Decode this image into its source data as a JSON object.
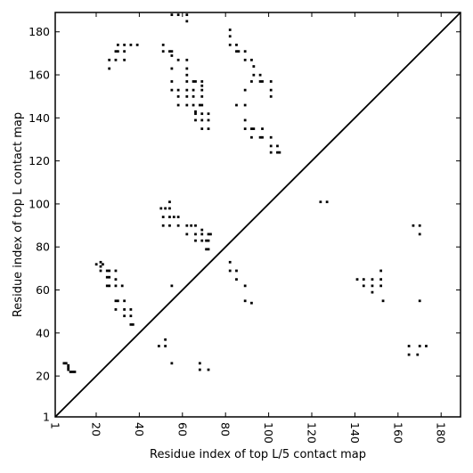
{
  "chart_data": {
    "type": "scatter",
    "xlabel": "Residue index of top L/5 contact map",
    "ylabel": "Residue index of top L contact map",
    "xlim": [
      1,
      189
    ],
    "ylim": [
      1,
      189
    ],
    "xticks": [
      1,
      20,
      40,
      60,
      80,
      100,
      120,
      140,
      160,
      180
    ],
    "yticks": [
      1,
      20,
      40,
      60,
      80,
      100,
      120,
      140,
      160,
      180
    ],
    "grid": false,
    "diagonal": true,
    "colors": {
      "marks": "#000000",
      "axes": "#000000",
      "background": "#ffffff"
    },
    "series": [
      {
        "region": "top-L/5-contacts-below-diagonal",
        "points": [
          [
            5,
            26
          ],
          [
            6,
            26
          ],
          [
            7,
            25
          ],
          [
            7,
            24
          ],
          [
            7,
            23
          ],
          [
            8,
            22
          ],
          [
            9,
            22
          ],
          [
            10,
            22
          ],
          [
            55,
            26
          ],
          [
            68,
            26
          ],
          [
            68,
            23
          ],
          [
            72,
            23
          ],
          [
            49,
            34
          ],
          [
            52,
            37
          ],
          [
            52,
            34
          ],
          [
            165,
            34
          ],
          [
            170,
            34
          ],
          [
            173,
            34
          ],
          [
            165,
            30
          ],
          [
            169,
            30
          ],
          [
            141,
            65
          ],
          [
            144,
            65
          ],
          [
            148,
            65
          ],
          [
            152,
            65
          ],
          [
            152,
            69
          ],
          [
            144,
            62
          ],
          [
            148,
            62
          ],
          [
            152,
            62
          ],
          [
            148,
            59
          ],
          [
            153,
            55
          ],
          [
            170,
            55
          ],
          [
            167,
            90
          ],
          [
            170,
            90
          ],
          [
            170,
            86
          ],
          [
            124,
            101
          ],
          [
            127,
            101
          ]
        ]
      },
      {
        "region": "top-L-contacts-above-diagonal",
        "points": [
          [
            20,
            72
          ],
          [
            22,
            73
          ],
          [
            22,
            71
          ],
          [
            22,
            69
          ],
          [
            23,
            72
          ],
          [
            25,
            69
          ],
          [
            26,
            69
          ],
          [
            29,
            69
          ],
          [
            25,
            66
          ],
          [
            26,
            66
          ],
          [
            29,
            65
          ],
          [
            25,
            62
          ],
          [
            26,
            62
          ],
          [
            29,
            62
          ],
          [
            32,
            62
          ],
          [
            29,
            55
          ],
          [
            30,
            55
          ],
          [
            33,
            55
          ],
          [
            29,
            51
          ],
          [
            33,
            51
          ],
          [
            36,
            51
          ],
          [
            33,
            48
          ],
          [
            36,
            48
          ],
          [
            36,
            44
          ],
          [
            37,
            44
          ],
          [
            50,
            98
          ],
          [
            52,
            98
          ],
          [
            54,
            98
          ],
          [
            54,
            101
          ],
          [
            51,
            94
          ],
          [
            54,
            94
          ],
          [
            56,
            94
          ],
          [
            58,
            94
          ],
          [
            51,
            90
          ],
          [
            54,
            90
          ],
          [
            58,
            90
          ],
          [
            55,
            62
          ],
          [
            62,
            90
          ],
          [
            64,
            90
          ],
          [
            66,
            90
          ],
          [
            69,
            88
          ],
          [
            69,
            86
          ],
          [
            62,
            86
          ],
          [
            66,
            86
          ],
          [
            66,
            83
          ],
          [
            69,
            83
          ],
          [
            71,
            83
          ],
          [
            72,
            83
          ],
          [
            72,
            86
          ],
          [
            73,
            86
          ],
          [
            71,
            79
          ],
          [
            72,
            79
          ],
          [
            82,
            73
          ],
          [
            82,
            69
          ],
          [
            85,
            69
          ],
          [
            85,
            65
          ],
          [
            89,
            62
          ],
          [
            89,
            55
          ],
          [
            92,
            54
          ],
          [
            55,
            188
          ],
          [
            58,
            188
          ],
          [
            62,
            188
          ],
          [
            62,
            185
          ],
          [
            51,
            174
          ],
          [
            51,
            171
          ],
          [
            54,
            171
          ],
          [
            55,
            171
          ],
          [
            55,
            169
          ],
          [
            58,
            167
          ],
          [
            62,
            167
          ],
          [
            62,
            163
          ],
          [
            55,
            163
          ],
          [
            30,
            174
          ],
          [
            29,
            171
          ],
          [
            30,
            171
          ],
          [
            29,
            167
          ],
          [
            26,
            167
          ],
          [
            26,
            163
          ],
          [
            33,
            174
          ],
          [
            36,
            174
          ],
          [
            39,
            174
          ],
          [
            33,
            171
          ],
          [
            33,
            167
          ],
          [
            55,
            157
          ],
          [
            62,
            160
          ],
          [
            62,
            157
          ],
          [
            65,
            157
          ],
          [
            66,
            157
          ],
          [
            69,
            157
          ],
          [
            69,
            155
          ],
          [
            55,
            153
          ],
          [
            58,
            153
          ],
          [
            62,
            153
          ],
          [
            65,
            153
          ],
          [
            69,
            153
          ],
          [
            58,
            150
          ],
          [
            62,
            150
          ],
          [
            65,
            150
          ],
          [
            69,
            150
          ],
          [
            58,
            146
          ],
          [
            62,
            146
          ],
          [
            65,
            146
          ],
          [
            68,
            146
          ],
          [
            69,
            146
          ],
          [
            66,
            143
          ],
          [
            66,
            142
          ],
          [
            69,
            142
          ],
          [
            72,
            142
          ],
          [
            66,
            139
          ],
          [
            69,
            139
          ],
          [
            72,
            139
          ],
          [
            69,
            135
          ],
          [
            72,
            135
          ],
          [
            82,
            181
          ],
          [
            82,
            178
          ],
          [
            82,
            174
          ],
          [
            85,
            174
          ],
          [
            85,
            171
          ],
          [
            86,
            171
          ],
          [
            89,
            171
          ],
          [
            89,
            167
          ],
          [
            92,
            167
          ],
          [
            93,
            164
          ],
          [
            93,
            160
          ],
          [
            92,
            157
          ],
          [
            96,
            160
          ],
          [
            96,
            157
          ],
          [
            97,
            157
          ],
          [
            101,
            157
          ],
          [
            101,
            153
          ],
          [
            101,
            150
          ],
          [
            89,
            153
          ],
          [
            85,
            146
          ],
          [
            89,
            146
          ],
          [
            89,
            139
          ],
          [
            89,
            135
          ],
          [
            92,
            135
          ],
          [
            93,
            135
          ],
          [
            97,
            135
          ],
          [
            92,
            131
          ],
          [
            96,
            131
          ],
          [
            97,
            131
          ],
          [
            101,
            131
          ],
          [
            101,
            127
          ],
          [
            104,
            127
          ],
          [
            104,
            124
          ],
          [
            105,
            124
          ],
          [
            101,
            124
          ]
        ]
      }
    ]
  }
}
